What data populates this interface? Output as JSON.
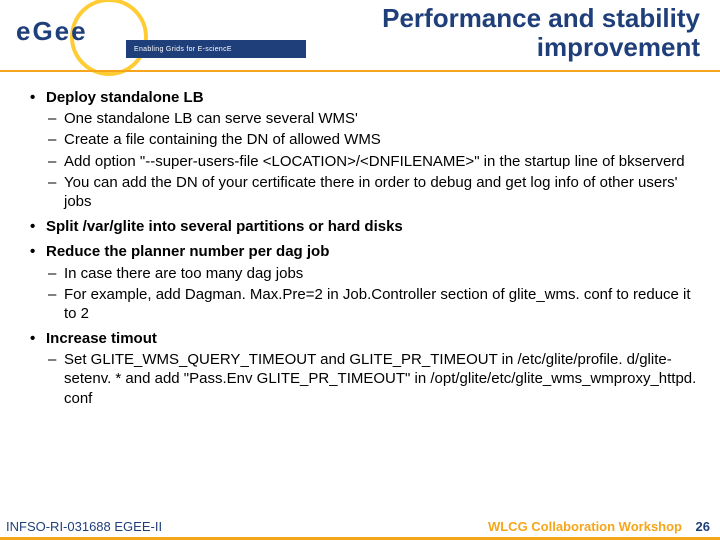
{
  "colors": {
    "navy": "#1f3f7a",
    "orange": "#f5a61a",
    "yellow": "#ffcc33",
    "black": "#000000",
    "white": "#ffffff"
  },
  "logo": {
    "text": "eGee",
    "tagline": "Enabling Grids for E-sciencE"
  },
  "title_line1": "Performance and stability",
  "title_line2": "improvement",
  "bullets": [
    {
      "level": 1,
      "text": "Deploy standalone LB"
    },
    {
      "level": 2,
      "text": "One standalone LB can serve several WMS'"
    },
    {
      "level": 2,
      "text": "Create a file containing the DN of allowed WMS"
    },
    {
      "level": 2,
      "text": "Add option \"--super-users-file <LOCATION>/<DNFILENAME>\" in the startup line of bkserverd"
    },
    {
      "level": 2,
      "text": "You can add the DN of your certificate there in order to debug and get log info of other users' jobs"
    },
    {
      "level": 1,
      "text": "Split /var/glite into several partitions or hard disks"
    },
    {
      "level": 1,
      "text": "Reduce the planner number per dag job"
    },
    {
      "level": 2,
      "text": "In case there are too many dag jobs"
    },
    {
      "level": 2,
      "text": "For example, add Dagman. Max.Pre=2 in Job.Controller section of glite_wms. conf to reduce it to 2"
    },
    {
      "level": 1,
      "text": "Increase timout"
    },
    {
      "level": 2,
      "text": "Set GLITE_WMS_QUERY_TIMEOUT and GLITE_PR_TIMEOUT in /etc/glite/profile. d/glite-setenv. * and add \"Pass.Env GLITE_PR_TIMEOUT\" in /opt/glite/etc/glite_wms_wmproxy_httpd. conf"
    }
  ],
  "footer": {
    "left": "INFSO-RI-031688 EGEE-II",
    "right": "WLCG Collaboration Workshop",
    "page": "26"
  }
}
